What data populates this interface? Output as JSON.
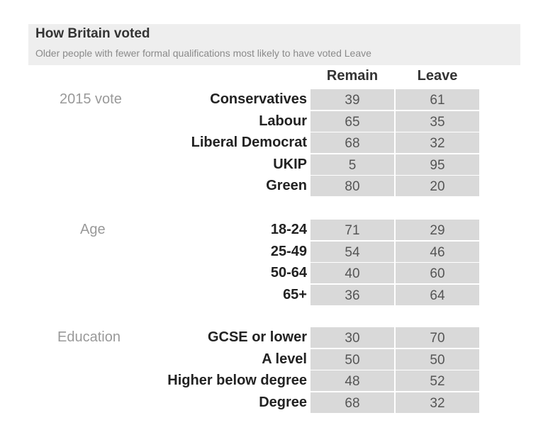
{
  "chart_data": {
    "type": "table",
    "title": "How Britain voted",
    "subtitle": "Older people with fewer formal qualifications most likely to have voted Leave",
    "columns": [
      "Remain",
      "Leave"
    ],
    "groups": [
      {
        "label": "2015 vote",
        "rows": [
          {
            "label": "Conservatives",
            "remain": "39",
            "leave": "61"
          },
          {
            "label": "Labour",
            "remain": "65",
            "leave": "35"
          },
          {
            "label": "Liberal Democrat",
            "remain": "68",
            "leave": "32"
          },
          {
            "label": "UKIP",
            "remain": "5",
            "leave": "95"
          },
          {
            "label": "Green",
            "remain": "80",
            "leave": "20"
          }
        ]
      },
      {
        "label": "Age",
        "rows": [
          {
            "label": "18-24",
            "remain": "71",
            "leave": "29"
          },
          {
            "label": "25-49",
            "remain": "54",
            "leave": "46"
          },
          {
            "label": "50-64",
            "remain": "40",
            "leave": "60"
          },
          {
            "label": "65+",
            "remain": "36",
            "leave": "64"
          }
        ]
      },
      {
        "label": "Education",
        "rows": [
          {
            "label": "GCSE or lower",
            "remain": "30",
            "leave": "70"
          },
          {
            "label": "A level",
            "remain": "50",
            "leave": "50"
          },
          {
            "label": "Higher below degree",
            "remain": "48",
            "leave": "52"
          },
          {
            "label": "Degree",
            "remain": "68",
            "leave": "32"
          }
        ]
      }
    ]
  }
}
